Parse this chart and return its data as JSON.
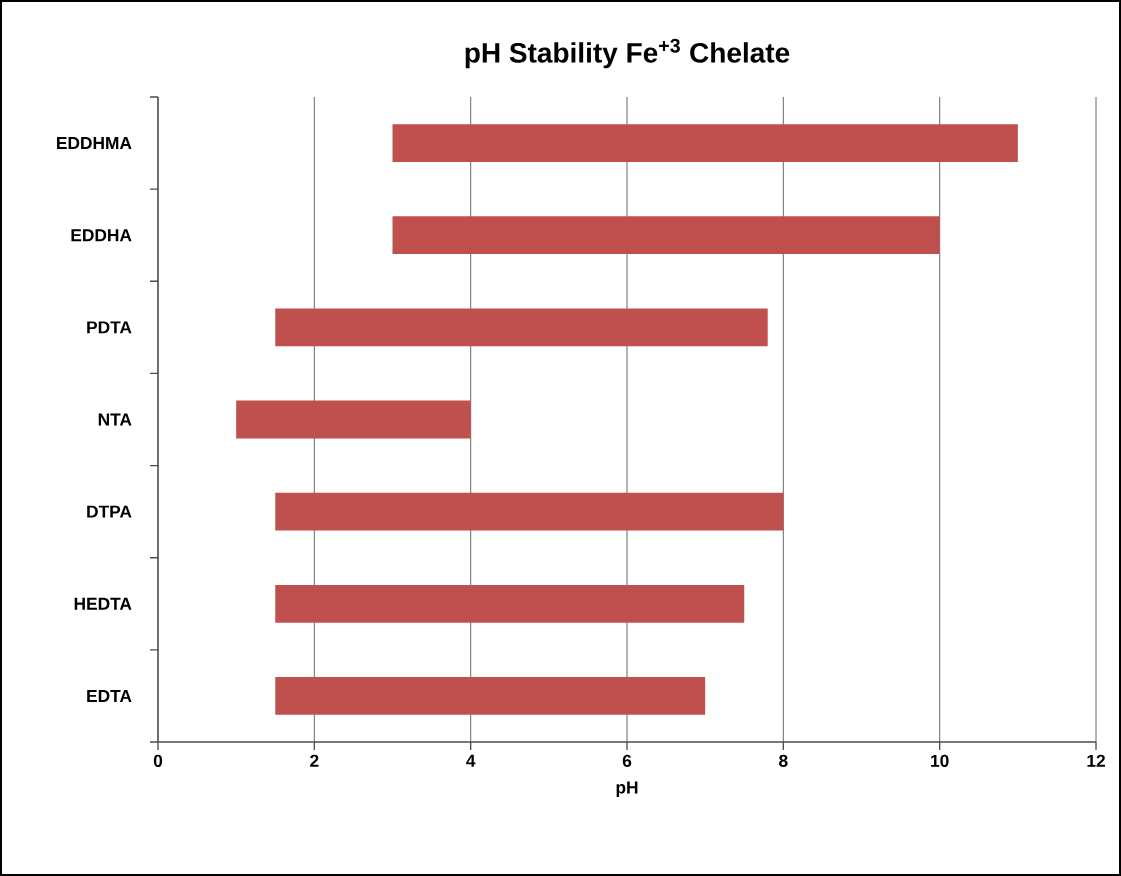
{
  "chart_data": {
    "type": "bar",
    "orientation": "horizontal",
    "title": "pH Stability Fe$^{+3}$ Chelate",
    "xlabel": "pH",
    "categories": [
      "EDDHMA",
      "EDDHA",
      "PDTA",
      "NTA",
      "DTPA",
      "HEDTA",
      "EDTA"
    ],
    "base": [
      3,
      3,
      1.5,
      1,
      1.5,
      1.5,
      1.5
    ],
    "values": [
      8,
      7,
      6.3,
      3,
      6.5,
      6,
      5.5
    ],
    "color": "#c0504d",
    "xlim": [
      0,
      12
    ],
    "xticks": [
      0,
      2,
      4,
      6,
      8,
      10,
      12
    ],
    "grid": "x"
  }
}
